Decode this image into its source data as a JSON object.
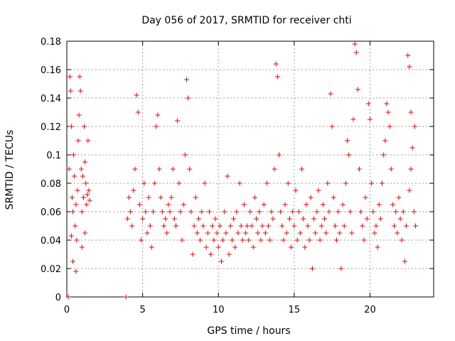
{
  "chart_data": {
    "type": "scatter",
    "title": "Day 056 of 2017, SRMTID for receiver chti",
    "xlabel": "GPS time / hours",
    "ylabel": "SRMTID / TECUs",
    "xlim": [
      0,
      24.2
    ],
    "ylim": [
      0,
      0.18
    ],
    "xticks": [
      0,
      5,
      10,
      15,
      20
    ],
    "yticks": [
      0,
      0.02,
      0.04,
      0.06,
      0.08,
      0.1,
      0.12,
      0.14,
      0.16,
      0.18
    ],
    "xtick_labels": [
      "0",
      "5",
      "10",
      "15",
      "20"
    ],
    "ytick_labels": [
      "0",
      "0.02",
      "0.04",
      "0.06",
      "0.08",
      "0.1",
      "0.12",
      "0.14",
      "0.16",
      "0.18"
    ],
    "grid": true,
    "marker": "+",
    "series": [
      {
        "name": "SRMTID",
        "color": "#ff0000",
        "points": [
          [
            0.1,
            0.0
          ],
          [
            0.15,
            0.09
          ],
          [
            0.2,
            0.155
          ],
          [
            0.25,
            0.145
          ],
          [
            0.3,
            0.12
          ],
          [
            0.35,
            0.07
          ],
          [
            0.4,
            0.06
          ],
          [
            0.45,
            0.1
          ],
          [
            0.5,
            0.085
          ],
          [
            0.55,
            0.05
          ],
          [
            0.6,
            0.065
          ],
          [
            0.65,
            0.04
          ],
          [
            0.7,
            0.075
          ],
          [
            0.75,
            0.11
          ],
          [
            0.8,
            0.128
          ],
          [
            0.85,
            0.155
          ],
          [
            0.9,
            0.145
          ],
          [
            0.95,
            0.09
          ],
          [
            1.0,
            0.06
          ],
          [
            1.05,
            0.085
          ],
          [
            1.1,
            0.07
          ],
          [
            1.15,
            0.12
          ],
          [
            1.2,
            0.095
          ],
          [
            1.25,
            0.08
          ],
          [
            1.3,
            0.065
          ],
          [
            1.35,
            0.072
          ],
          [
            1.4,
            0.11
          ],
          [
            1.45,
            0.075
          ],
          [
            1.5,
            0.068
          ],
          [
            0.3,
            0.043
          ],
          [
            0.4,
            0.025
          ],
          [
            0.6,
            0.018
          ],
          [
            1.0,
            0.035
          ],
          [
            1.2,
            0.045
          ],
          [
            3.9,
            0.0
          ],
          [
            4.0,
            0.055
          ],
          [
            4.1,
            0.07
          ],
          [
            4.2,
            0.06
          ],
          [
            4.3,
            0.05
          ],
          [
            4.4,
            0.075
          ],
          [
            4.5,
            0.09
          ],
          [
            4.6,
            0.142
          ],
          [
            4.7,
            0.13
          ],
          [
            4.8,
            0.065
          ],
          [
            4.9,
            0.04
          ],
          [
            5.0,
            0.055
          ],
          [
            5.1,
            0.08
          ],
          [
            5.2,
            0.06
          ],
          [
            5.3,
            0.045
          ],
          [
            5.4,
            0.07
          ],
          [
            5.5,
            0.05
          ],
          [
            5.6,
            0.035
          ],
          [
            5.7,
            0.06
          ],
          [
            5.8,
            0.08
          ],
          [
            5.9,
            0.12
          ],
          [
            6.0,
            0.128
          ],
          [
            6.1,
            0.09
          ],
          [
            6.2,
            0.07
          ],
          [
            6.3,
            0.06
          ],
          [
            6.4,
            0.05
          ],
          [
            6.5,
            0.055
          ],
          [
            6.6,
            0.045
          ],
          [
            6.7,
            0.065
          ],
          [
            6.8,
            0.06
          ],
          [
            6.9,
            0.07
          ],
          [
            7.0,
            0.09
          ],
          [
            7.1,
            0.055
          ],
          [
            7.2,
            0.05
          ],
          [
            7.3,
            0.124
          ],
          [
            7.4,
            0.08
          ],
          [
            7.5,
            0.06
          ],
          [
            7.6,
            0.04
          ],
          [
            7.7,
            0.065
          ],
          [
            7.8,
            0.1
          ],
          [
            7.9,
            0.153
          ],
          [
            8.0,
            0.14
          ],
          [
            8.1,
            0.09
          ],
          [
            8.2,
            0.06
          ],
          [
            8.3,
            0.03
          ],
          [
            8.4,
            0.05
          ],
          [
            8.5,
            0.07
          ],
          [
            8.6,
            0.045
          ],
          [
            8.7,
            0.055
          ],
          [
            8.8,
            0.04
          ],
          [
            8.9,
            0.06
          ],
          [
            9.0,
            0.05
          ],
          [
            9.1,
            0.08
          ],
          [
            9.2,
            0.035
          ],
          [
            9.3,
            0.045
          ],
          [
            9.4,
            0.06
          ],
          [
            9.5,
            0.03
          ],
          [
            9.6,
            0.05
          ],
          [
            9.7,
            0.04
          ],
          [
            9.8,
            0.055
          ],
          [
            9.9,
            0.045
          ],
          [
            10.0,
            0.035
          ],
          [
            10.1,
            0.05
          ],
          [
            10.2,
            0.025
          ],
          [
            10.3,
            0.04
          ],
          [
            10.4,
            0.06
          ],
          [
            10.5,
            0.045
          ],
          [
            10.6,
            0.085
          ],
          [
            10.7,
            0.03
          ],
          [
            10.8,
            0.05
          ],
          [
            10.9,
            0.04
          ],
          [
            11.0,
            0.055
          ],
          [
            11.1,
            0.035
          ],
          [
            11.2,
            0.06
          ],
          [
            11.3,
            0.045
          ],
          [
            11.4,
            0.08
          ],
          [
            11.5,
            0.05
          ],
          [
            11.6,
            0.04
          ],
          [
            11.7,
            0.065
          ],
          [
            11.8,
            0.045
          ],
          [
            11.9,
            0.05
          ],
          [
            12.0,
            0.04
          ],
          [
            12.1,
            0.06
          ],
          [
            12.2,
            0.05
          ],
          [
            12.3,
            0.035
          ],
          [
            12.4,
            0.07
          ],
          [
            12.5,
            0.055
          ],
          [
            12.6,
            0.045
          ],
          [
            12.7,
            0.06
          ],
          [
            12.8,
            0.04
          ],
          [
            12.9,
            0.05
          ],
          [
            13.0,
            0.065
          ],
          [
            13.1,
            0.045
          ],
          [
            13.2,
            0.08
          ],
          [
            13.3,
            0.05
          ],
          [
            13.4,
            0.04
          ],
          [
            13.5,
            0.06
          ],
          [
            13.6,
            0.055
          ],
          [
            13.7,
            0.09
          ],
          [
            13.8,
            0.164
          ],
          [
            13.9,
            0.155
          ],
          [
            14.0,
            0.1
          ],
          [
            14.1,
            0.06
          ],
          [
            14.2,
            0.05
          ],
          [
            14.3,
            0.04
          ],
          [
            14.4,
            0.065
          ],
          [
            14.5,
            0.045
          ],
          [
            14.6,
            0.08
          ],
          [
            14.7,
            0.055
          ],
          [
            14.8,
            0.035
          ],
          [
            14.9,
            0.06
          ],
          [
            15.0,
            0.05
          ],
          [
            15.1,
            0.075
          ],
          [
            15.2,
            0.04
          ],
          [
            15.3,
            0.06
          ],
          [
            15.4,
            0.045
          ],
          [
            15.5,
            0.09
          ],
          [
            15.6,
            0.055
          ],
          [
            15.7,
            0.035
          ],
          [
            15.8,
            0.065
          ],
          [
            15.9,
            0.05
          ],
          [
            16.0,
            0.04
          ],
          [
            16.1,
            0.07
          ],
          [
            16.2,
            0.02
          ],
          [
            16.3,
            0.055
          ],
          [
            16.4,
            0.045
          ],
          [
            16.5,
            0.06
          ],
          [
            16.6,
            0.075
          ],
          [
            16.7,
            0.04
          ],
          [
            16.8,
            0.05
          ],
          [
            16.9,
            0.065
          ],
          [
            17.0,
            0.055
          ],
          [
            17.1,
            0.045
          ],
          [
            17.2,
            0.08
          ],
          [
            17.3,
            0.06
          ],
          [
            17.4,
            0.143
          ],
          [
            17.5,
            0.12
          ],
          [
            17.6,
            0.07
          ],
          [
            17.7,
            0.05
          ],
          [
            17.8,
            0.04
          ],
          [
            17.9,
            0.06
          ],
          [
            18.0,
            0.045
          ],
          [
            18.1,
            0.02
          ],
          [
            18.2,
            0.065
          ],
          [
            18.3,
            0.05
          ],
          [
            18.4,
            0.08
          ],
          [
            18.5,
            0.11
          ],
          [
            18.6,
            0.1
          ],
          [
            18.7,
            0.06
          ],
          [
            18.8,
            0.045
          ],
          [
            18.9,
            0.125
          ],
          [
            19.0,
            0.178
          ],
          [
            19.1,
            0.172
          ],
          [
            19.2,
            0.146
          ],
          [
            19.3,
            0.09
          ],
          [
            19.4,
            0.06
          ],
          [
            19.5,
            0.05
          ],
          [
            19.6,
            0.04
          ],
          [
            19.7,
            0.07
          ],
          [
            19.8,
            0.055
          ],
          [
            19.9,
            0.136
          ],
          [
            20.0,
            0.125
          ],
          [
            20.1,
            0.08
          ],
          [
            20.2,
            0.06
          ],
          [
            20.3,
            0.045
          ],
          [
            20.4,
            0.05
          ],
          [
            20.5,
            0.035
          ],
          [
            20.6,
            0.065
          ],
          [
            20.7,
            0.055
          ],
          [
            20.8,
            0.08
          ],
          [
            20.9,
            0.1
          ],
          [
            21.0,
            0.11
          ],
          [
            21.1,
            0.136
          ],
          [
            21.2,
            0.13
          ],
          [
            21.3,
            0.12
          ],
          [
            21.4,
            0.09
          ],
          [
            21.5,
            0.065
          ],
          [
            21.6,
            0.05
          ],
          [
            21.7,
            0.06
          ],
          [
            21.8,
            0.045
          ],
          [
            21.9,
            0.07
          ],
          [
            22.0,
            0.055
          ],
          [
            22.1,
            0.04
          ],
          [
            22.2,
            0.06
          ],
          [
            22.3,
            0.025
          ],
          [
            22.4,
            0.05
          ],
          [
            22.5,
            0.17
          ],
          [
            22.6,
            0.162
          ],
          [
            22.7,
            0.13
          ],
          [
            22.8,
            0.105
          ],
          [
            22.9,
            0.06
          ],
          [
            23.0,
            0.05
          ],
          [
            22.95,
            0.12
          ],
          [
            22.7,
            0.09
          ],
          [
            22.6,
            0.075
          ]
        ]
      }
    ]
  }
}
